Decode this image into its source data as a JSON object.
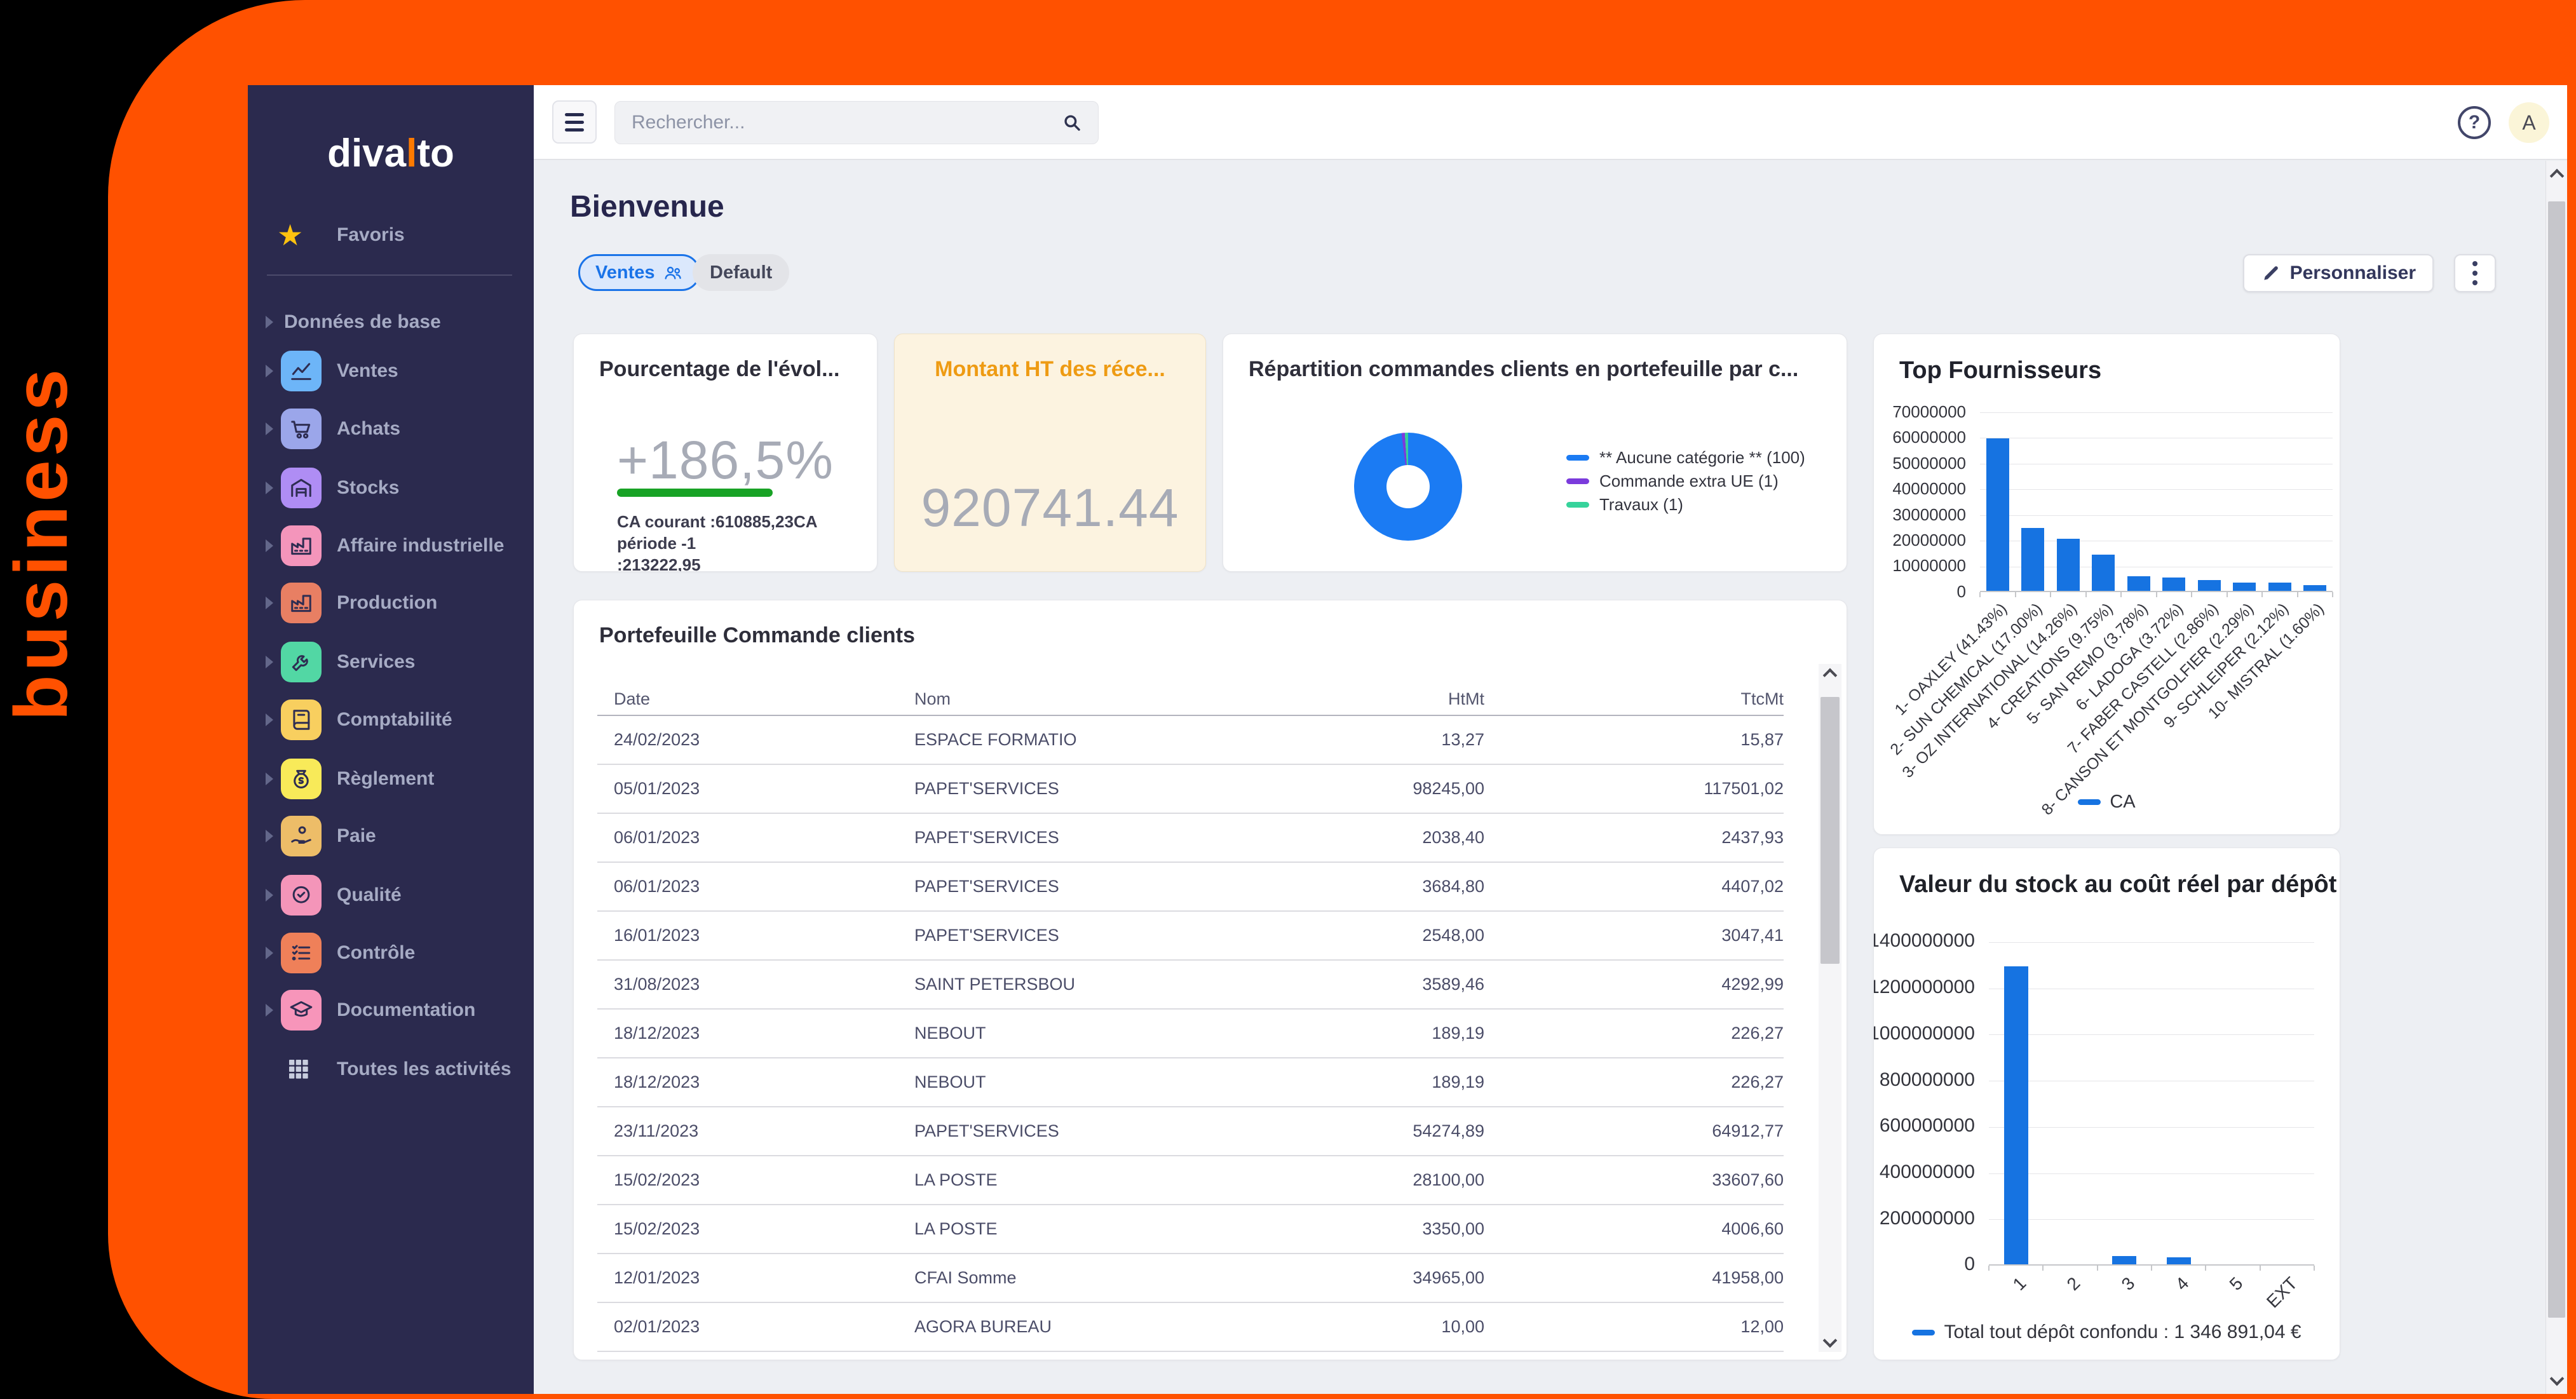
{
  "colors": {
    "frame_orange": "#ff5100",
    "sidebar_navy": "#2b2a4e",
    "accent_blue": "#1a73e8",
    "bar_blue": "#1673e1",
    "donut_blue": "#1b7bf3",
    "legend_purple": "#7b3bdc",
    "legend_green": "#36d39b",
    "positive_green": "#18a225",
    "montant_orange": "#ee9b13"
  },
  "brand": {
    "logo_prefix": "diva",
    "logo_accent": "l",
    "logo_suffix": "to",
    "vertical_text": "business"
  },
  "topbar": {
    "search_placeholder": "Rechercher...",
    "help_symbol": "?",
    "avatar_initial": "A"
  },
  "page": {
    "title": "Bienvenue",
    "personalize_label": "Personnaliser",
    "tabs": [
      {
        "label": "Ventes"
      },
      {
        "label": "Default"
      }
    ]
  },
  "sidebar": {
    "items": [
      {
        "label": "Favoris",
        "kind": "favorite",
        "icon": "star-icon"
      },
      {
        "label": "Données de base",
        "kind": "section",
        "icon": null
      },
      {
        "label": "Ventes",
        "kind": "module",
        "icon": "chart-line-icon",
        "tile": "#6db5f8"
      },
      {
        "label": "Achats",
        "kind": "module",
        "icon": "cart-icon",
        "tile": "#9ba6ea"
      },
      {
        "label": "Stocks",
        "kind": "module",
        "icon": "warehouse-icon",
        "tile": "#af8df4"
      },
      {
        "label": "Affaire industrielle",
        "kind": "module",
        "icon": "factory-icon",
        "tile": "#f495bb"
      },
      {
        "label": "Production",
        "kind": "module",
        "icon": "factory-icon",
        "tile": "#e87f63"
      },
      {
        "label": "Services",
        "kind": "module",
        "icon": "wrench-icon",
        "tile": "#52d7a4"
      },
      {
        "label": "Comptabilité",
        "kind": "module",
        "icon": "book-icon",
        "tile": "#f8cf5f"
      },
      {
        "label": "Règlement",
        "kind": "module",
        "icon": "money-bag-icon",
        "tile": "#f8ea59"
      },
      {
        "label": "Paie",
        "kind": "module",
        "icon": "hand-coin-icon",
        "tile": "#edbd68"
      },
      {
        "label": "Qualité",
        "kind": "module",
        "icon": "badge-check-icon",
        "tile": "#f495b9"
      },
      {
        "label": "Contrôle",
        "kind": "module",
        "icon": "checklist-icon",
        "tile": "#ef8059"
      },
      {
        "label": "Documentation",
        "kind": "module",
        "icon": "graduation-cap-icon",
        "tile": "#f795ba"
      },
      {
        "label": "Toutes les activités",
        "kind": "all",
        "icon": "grid-icon"
      }
    ]
  },
  "cards": {
    "evolution": {
      "title": "Pourcentage de l'évol...",
      "value": "+186,5%",
      "subtext_line1": "CA courant :610885,23CA période -1",
      "subtext_line2": ":213222,95"
    },
    "montant": {
      "title": "Montant HT des réce...",
      "value": "920741.44"
    },
    "repartition": {
      "title": "Répartition commandes clients en portefeuille par c...",
      "type": "donut",
      "legend": [
        {
          "label": "** Aucune catégorie ** (100)",
          "value": 100,
          "color": "#1b7bf3"
        },
        {
          "label": "Commande extra UE (1)",
          "value": 1,
          "color": "#7b3bdc"
        },
        {
          "label": "Travaux (1)",
          "value": 1,
          "color": "#36d39b"
        }
      ]
    },
    "top_fournisseurs": {
      "title": "Top Fournisseurs",
      "type": "bar",
      "legend_label": "CA",
      "ylim": [
        0,
        70000000
      ],
      "ytick_step": 10000000,
      "categories": [
        "1- OAXLEY (41.43%)",
        "2- SUN CHEMICAL (17.00%)",
        "3- OZ INTERNATIONAL (14.26%)",
        "4- CREATIONS (9.75%)",
        "5- SAN REMO (3.78%)",
        "6- LADOGA (3.72%)",
        "7- FABER CASTELL (2.86%)",
        "8- CANSON ET MONTGOLFIER (2.29%)",
        "9- SCHLEIPER (2.12%)",
        "10- MISTRAL (1.60%)"
      ],
      "values": [
        59400000,
        24400000,
        20300000,
        14000000,
        5600000,
        5300000,
        4200000,
        3350000,
        3300000,
        2350000
      ]
    },
    "valeur_stock": {
      "title": "Valeur du stock au coût réel par dépôt",
      "type": "bar",
      "legend_label": "Total tout dépôt confondu : 1 346 891,04 €",
      "ylim": [
        0,
        1400000000
      ],
      "ytick_step": 200000000,
      "categories": [
        "1",
        "2",
        "3",
        "4",
        "5",
        "EXT"
      ],
      "values": [
        1290000000,
        0,
        35000000,
        30000000,
        0,
        0
      ]
    }
  },
  "table": {
    "title": "Portefeuille Commande clients",
    "columns": [
      "Date",
      "Nom",
      "HtMt",
      "TtcMt"
    ],
    "rows": [
      [
        "24/02/2023",
        "ESPACE FORMATIO",
        "13,27",
        "15,87"
      ],
      [
        "05/01/2023",
        "PAPET'SERVICES",
        "98245,00",
        "117501,02"
      ],
      [
        "06/01/2023",
        "PAPET'SERVICES",
        "2038,40",
        "2437,93"
      ],
      [
        "06/01/2023",
        "PAPET'SERVICES",
        "3684,80",
        "4407,02"
      ],
      [
        "16/01/2023",
        "PAPET'SERVICES",
        "2548,00",
        "3047,41"
      ],
      [
        "31/08/2023",
        "SAINT PETERSBOU",
        "3589,46",
        "4292,99"
      ],
      [
        "18/12/2023",
        "NEBOUT",
        "189,19",
        "226,27"
      ],
      [
        "18/12/2023",
        "NEBOUT",
        "189,19",
        "226,27"
      ],
      [
        "23/11/2023",
        "PAPET'SERVICES",
        "54274,89",
        "64912,77"
      ],
      [
        "15/02/2023",
        "LA POSTE",
        "28100,00",
        "33607,60"
      ],
      [
        "15/02/2023",
        "LA POSTE",
        "3350,00",
        "4006,60"
      ],
      [
        "12/01/2023",
        "CFAI Somme",
        "34965,00",
        "41958,00"
      ],
      [
        "02/01/2023",
        "AGORA BUREAU",
        "10,00",
        "12,00"
      ]
    ]
  }
}
